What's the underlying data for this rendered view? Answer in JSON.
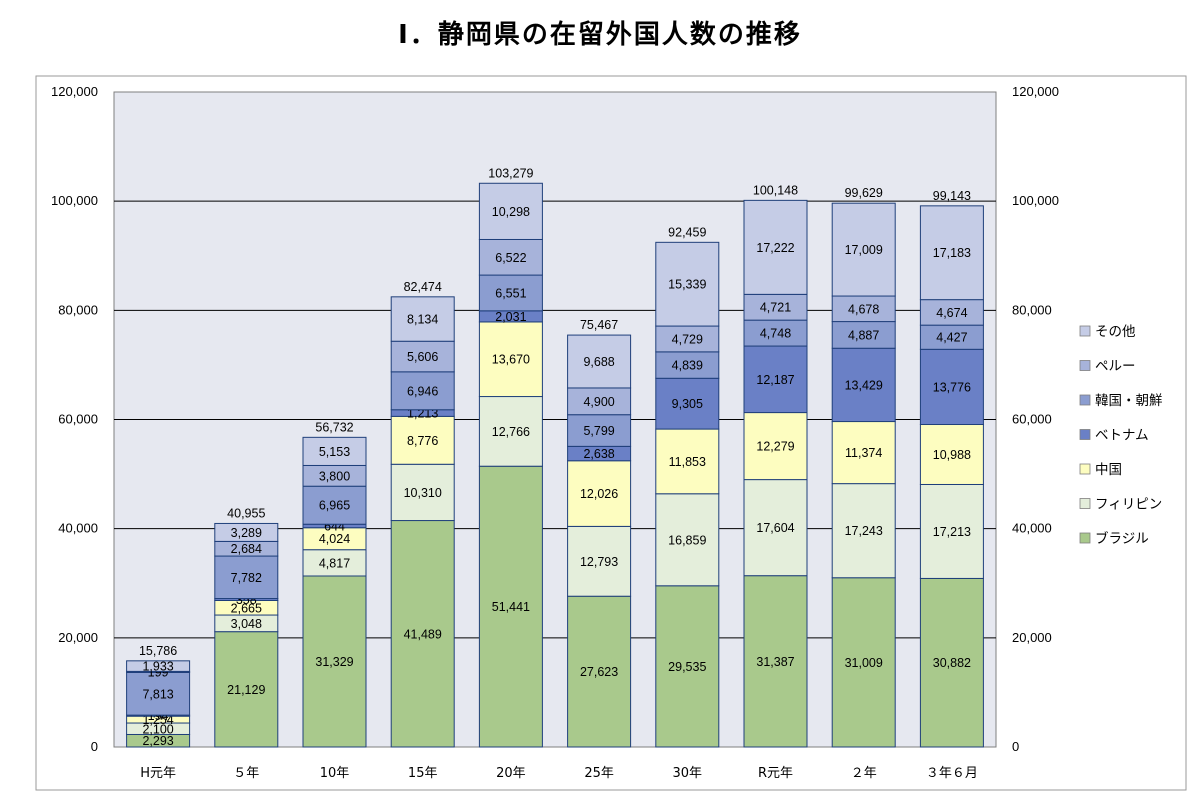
{
  "title": "Ⅰ．静岡県の在留外国人数の推移",
  "chart_data": {
    "type": "bar",
    "stacked": true,
    "categories": [
      "H元年",
      "５年",
      "10年",
      "15年",
      "20年",
      "25年",
      "30年",
      "R元年",
      "２年",
      "３年６月"
    ],
    "ylim": [
      0,
      120000
    ],
    "yticks": [
      0,
      20000,
      40000,
      60000,
      80000,
      100000,
      120000
    ],
    "ytick_labels": [
      "0",
      "20,000",
      "40,000",
      "60,000",
      "80,000",
      "100,000",
      "120,000"
    ],
    "secondary_y_axis": true,
    "legend_position": "right",
    "series": [
      {
        "name": "ブラジル",
        "color": "#a9c98c",
        "values": [
          2293,
          21129,
          31329,
          41489,
          51441,
          27623,
          29535,
          31387,
          31009,
          30882
        ]
      },
      {
        "name": "フィリピン",
        "color": "#e4eedb",
        "values": [
          2100,
          3048,
          4817,
          10310,
          12766,
          12793,
          16859,
          17604,
          17243,
          17213
        ]
      },
      {
        "name": "中国",
        "color": "#fdfdc0",
        "values": [
          1254,
          2665,
          4024,
          8776,
          13670,
          12026,
          11853,
          12279,
          11374,
          10988
        ]
      },
      {
        "name": "ベトナム",
        "color": "#6a80c6",
        "values": [
          194,
          358,
          644,
          1213,
          2031,
          2638,
          9305,
          12187,
          13429,
          13776
        ]
      },
      {
        "name": "韓国・朝鮮",
        "color": "#8b9dd0",
        "values": [
          7813,
          7782,
          6965,
          6946,
          6551,
          5799,
          4839,
          4748,
          4887,
          4427
        ]
      },
      {
        "name": "ペルー",
        "color": "#a7b3da",
        "values": [
          199,
          2684,
          3800,
          5606,
          6522,
          4900,
          4729,
          4721,
          4678,
          4674
        ]
      },
      {
        "name": "その他",
        "color": "#c5cce6",
        "values": [
          1933,
          3289,
          5153,
          8134,
          10298,
          9688,
          15339,
          17222,
          17009,
          17183
        ]
      }
    ],
    "totals": [
      15786,
      40955,
      56732,
      82474,
      103279,
      75467,
      92459,
      100148,
      99629,
      99143
    ],
    "value_labels": [
      [
        "2,293",
        "21,129",
        "31,329",
        "41,489",
        "51,441",
        "27,623",
        "29,535",
        "31,387",
        "31,009",
        "30,882"
      ],
      [
        "2,100",
        "3,048",
        "4,817",
        "10,310",
        "12,766",
        "12,793",
        "16,859",
        "17,604",
        "17,243",
        "17,213"
      ],
      [
        "1,254",
        "2,665",
        "4,024",
        "8,776",
        "13,670",
        "12,026",
        "11,853",
        "12,279",
        "11,374",
        "10,988"
      ],
      [
        "194",
        "358",
        "644",
        "1,213",
        "2,031",
        "2,638",
        "9,305",
        "12,187",
        "13,429",
        "13,776"
      ],
      [
        "7,813",
        "7,782",
        "6,965",
        "6,946",
        "6,551",
        "5,799",
        "4,839",
        "4,748",
        "4,887",
        "4,427"
      ],
      [
        "199",
        "2,684",
        "3,800",
        "5,606",
        "6,522",
        "4,900",
        "4,729",
        "4,721",
        "4,678",
        "4,674"
      ],
      [
        "1,933",
        "3,289",
        "5,153",
        "8,134",
        "10,298",
        "9,688",
        "15,339",
        "17,222",
        "17,009",
        "17,183"
      ]
    ],
    "total_labels": [
      "15,786",
      "40,955",
      "56,732",
      "82,474",
      "103,279",
      "75,467",
      "92,459",
      "100,148",
      "99,629",
      "99,143"
    ],
    "colors": {
      "plot_background": "#e6e8f0",
      "bar_edge": "#1f3f7a",
      "grid": "#000000"
    }
  }
}
